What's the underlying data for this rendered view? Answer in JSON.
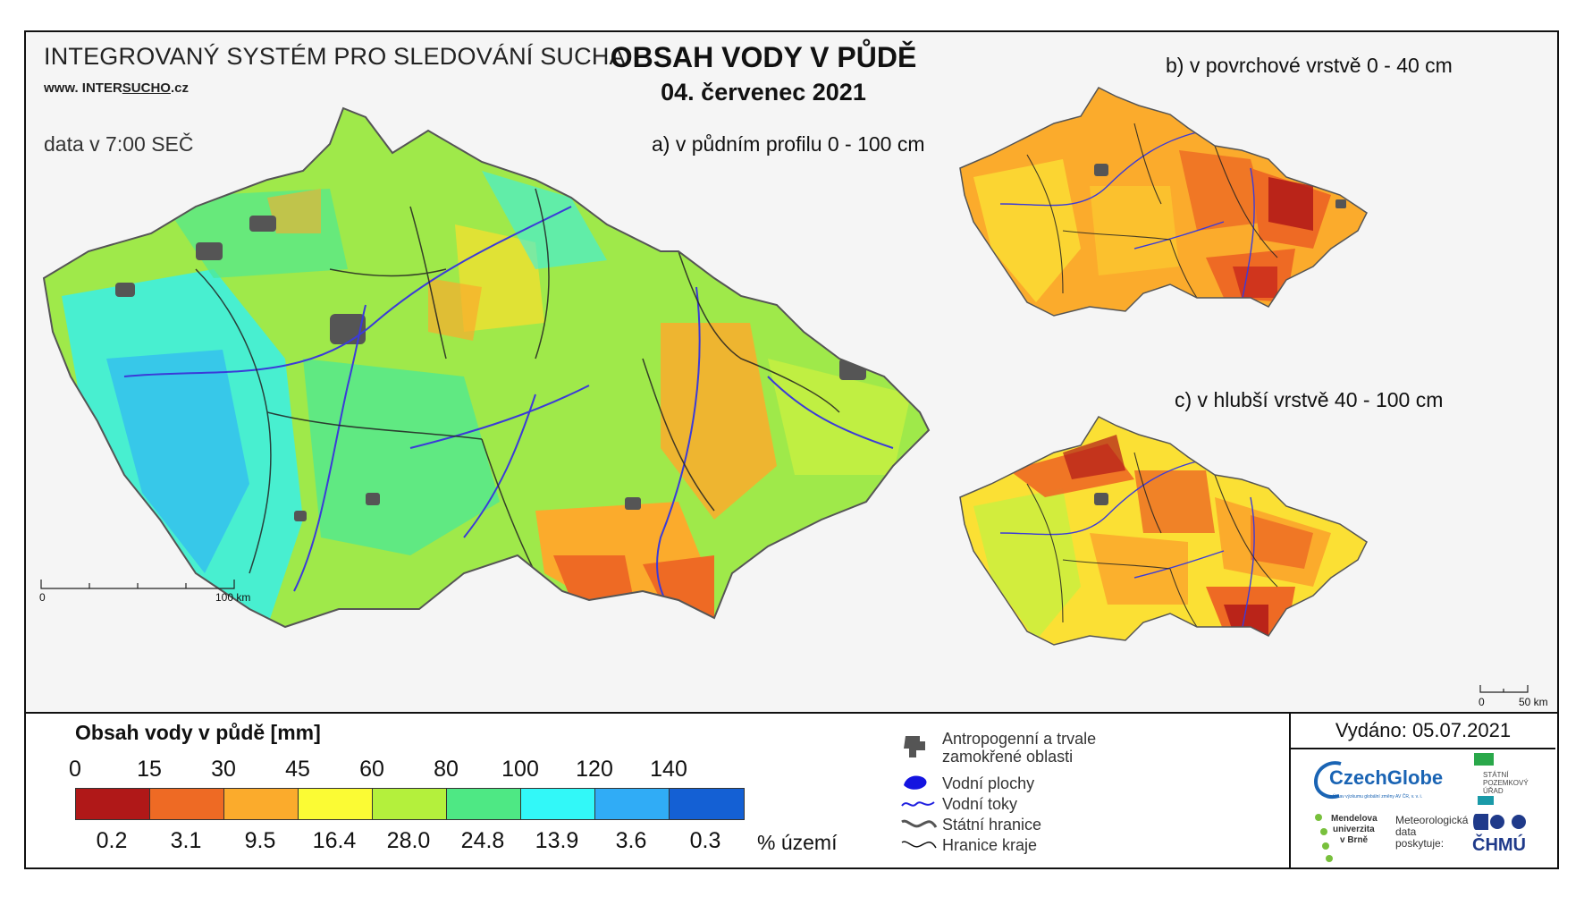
{
  "header": {
    "system_title": "INTEGROVANÝ SYSTÉM PRO SLEDOVÁNÍ SUCHA",
    "url_prefix": "www. INTER",
    "url_mid": "SUCHO",
    "url_suffix": ".cz",
    "data_time": "data v 7:00 SEČ",
    "title": "OBSAH VODY V PŮDĚ",
    "date": "04. červenec 2021"
  },
  "maps": {
    "a_label": "a) v půdním profilu 0 - 100 cm",
    "b_label": "b) v povrchové vrstvě 0 - 40 cm",
    "c_label": "c) v hlubší vrstvě 40 - 100 cm",
    "scale_main_start": "0",
    "scale_main_end": "100 km",
    "scale_small_start": "0",
    "scale_small_end": "50 km"
  },
  "legend": {
    "title": "Obsah vody v půdě  [mm]",
    "ticks": [
      "0",
      "15",
      "30",
      "45",
      "60",
      "80",
      "100",
      "120",
      "140"
    ],
    "colors": [
      "#b01818",
      "#ee6a24",
      "#fbab2c",
      "#fbfb34",
      "#b4f03c",
      "#4ee884",
      "#32f8f8",
      "#30acf6",
      "#1460d4"
    ],
    "percentages": [
      "0.2",
      "3.1",
      "9.5",
      "16.4",
      "28.0",
      "24.8",
      "13.9",
      "3.6",
      "0.3"
    ],
    "pct_unit": "% území"
  },
  "symbols": {
    "anthropogenic_line1": "Antropogenní a trvale",
    "anthropogenic_line2": "zamokřené oblasti",
    "water_bodies": "Vodní plochy",
    "rivers": "Vodní toky",
    "state_border": "Státní hranice",
    "region_border": "Hranice kraje"
  },
  "footer": {
    "issued": "Vydáno: 05.07.2021",
    "czechglobe": "CzechGlobe",
    "czechglobe_sub": "Ústav výzkumu globální změny AV ČR, v. v. i.",
    "spu_line1": "STÁTNÍ",
    "spu_line2": "POZEMKOVÝ",
    "spu_line3": "ÚŘAD",
    "mendel_line1": "Mendelova",
    "mendel_line2": "univerzita",
    "mendel_line3": "v Brně",
    "met_line1": "Meteorologická",
    "met_line2": "data",
    "met_line3": "poskytuje:",
    "chmu": "ČHMÚ"
  }
}
